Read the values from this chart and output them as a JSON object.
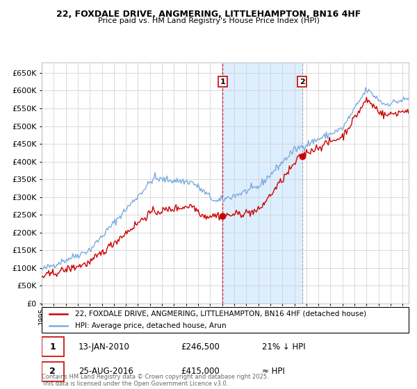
{
  "title1": "22, FOXDALE DRIVE, ANGMERING, LITTLEHAMPTON, BN16 4HF",
  "title2": "Price paid vs. HM Land Registry's House Price Index (HPI)",
  "legend1": "22, FOXDALE DRIVE, ANGMERING, LITTLEHAMPTON, BN16 4HF (detached house)",
  "legend2": "HPI: Average price, detached house, Arun",
  "annotation1_date": "13-JAN-2010",
  "annotation1_price": "£246,500",
  "annotation1_hpi": "21% ↓ HPI",
  "annotation2_date": "25-AUG-2016",
  "annotation2_price": "£415,000",
  "annotation2_hpi": "≈ HPI",
  "footer": "Contains HM Land Registry data © Crown copyright and database right 2025.\nThis data is licensed under the Open Government Licence v3.0.",
  "red_color": "#cc0000",
  "blue_color": "#7aabe0",
  "shade_color": "#ddeeff",
  "sale1_vline_color": "#cc0000",
  "sale2_vline_color": "#aaaaaa",
  "ylim": [
    0,
    680000
  ],
  "yticks": [
    0,
    50000,
    100000,
    150000,
    200000,
    250000,
    300000,
    350000,
    400000,
    450000,
    500000,
    550000,
    600000,
    650000
  ],
  "xlim_start": 1995,
  "xlim_end": 2025.5,
  "sale1_x": 2010.035,
  "sale1_y": 246500,
  "sale2_x": 2016.647,
  "sale2_y": 415000,
  "bg_color": "#ffffff",
  "grid_color": "#cccccc"
}
